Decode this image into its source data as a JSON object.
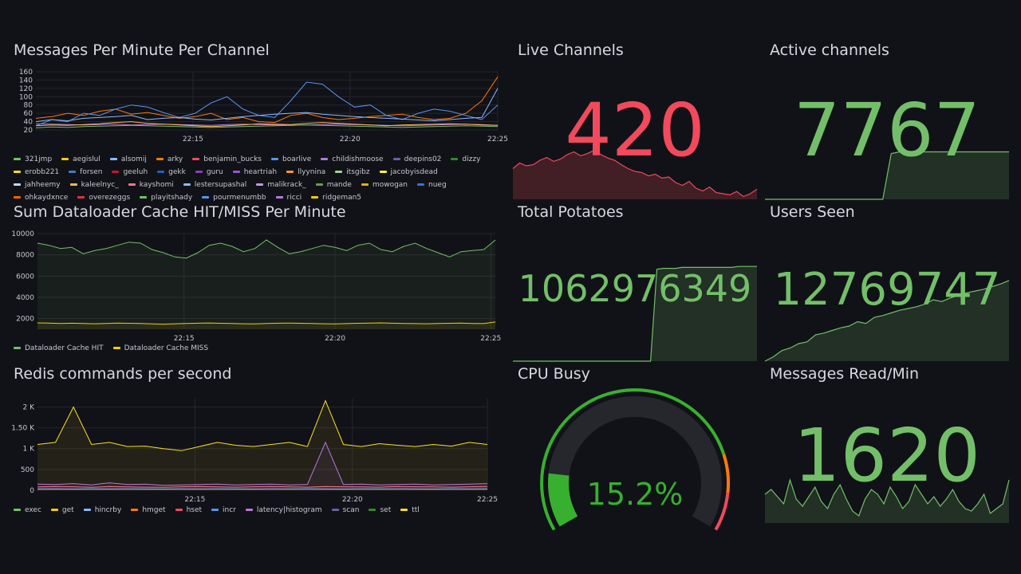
{
  "panels": {
    "messages": {
      "title": "Messages Per Minute Per Channel",
      "legend": [
        "321jmp",
        "aegislul",
        "alsomij",
        "arky",
        "benjamin_bucks",
        "boarlive",
        "childishmoose",
        "deepins02",
        "dizzy",
        "erobb221",
        "forsen",
        "geeluh",
        "gekk",
        "guru",
        "heartriah",
        "llyynina",
        "itsgibz",
        "jacobyisdead",
        "jahheemy",
        "kaleelnyc_",
        "kayshomi",
        "lestersupashal",
        "malikrack_",
        "mande",
        "mowogan",
        "nueg",
        "ohkaydxnce",
        "overezeggs",
        "playitshady",
        "pourmenumbb",
        "ricci",
        "ridgeman5"
      ]
    },
    "dataloader": {
      "title": "Sum Dataloader Cache HIT/MISS Per Minute",
      "legend": [
        "Dataloader Cache HIT",
        "Dataloader Cache MISS"
      ]
    },
    "redis": {
      "title": "Redis commands per second",
      "legend": [
        "exec",
        "get",
        "hincrby",
        "hmget",
        "hset",
        "incr",
        "latency|histogram",
        "scan",
        "set",
        "ttl"
      ]
    },
    "live_channels": {
      "title": "Live Channels",
      "value": "420",
      "color": "#f2495c"
    },
    "active_channels": {
      "title": "Active channels",
      "value": "7767",
      "color": "#73bf69"
    },
    "total_potatoes": {
      "title": "Total Potatoes",
      "value": "1062976349",
      "color": "#73bf69"
    },
    "users_seen": {
      "title": "Users Seen",
      "value": "12769747",
      "color": "#73bf69"
    },
    "cpu_busy": {
      "title": "CPU Busy",
      "value": "15.2%",
      "percent": 15.2,
      "color": "#37b02f"
    },
    "messages_read": {
      "title": "Messages Read/Min",
      "value": "1620",
      "color": "#73bf69"
    }
  },
  "legend_colors": [
    "#73bf69",
    "#f2cc0c",
    "#8ab8ff",
    "#ff780a",
    "#f2495c",
    "#5794f2",
    "#b877d9",
    "#705da0",
    "#37872d",
    "#fade2a",
    "#447ebc",
    "#c4162a",
    "#1f60c4",
    "#8f3bb8",
    "#a352cc",
    "#ff9830",
    "#96d98d",
    "#ffee52",
    "#c0d8ff",
    "#ffb357",
    "#ff7383",
    "#8ab8ff",
    "#ca95e5",
    "#56a64b",
    "#e0b400",
    "#3274d9",
    "#fa6400",
    "#e02f44",
    "#73bf69",
    "#5794f2",
    "#b877d9",
    "#f2cc0c"
  ],
  "chart_data": [
    {
      "type": "line",
      "title": "Messages Per Minute Per Channel",
      "x_ticks": [
        "22:15",
        "22:20",
        "22:25"
      ],
      "y_ticks": [
        20,
        40,
        60,
        80,
        100,
        120,
        140,
        160
      ],
      "ylim": [
        20,
        160
      ],
      "series": [
        {
          "name": "321jmp",
          "values": [
            35,
            34,
            33,
            32,
            33,
            34,
            32,
            33,
            34,
            33,
            32,
            31,
            33,
            34,
            33,
            32,
            31,
            32,
            33,
            34,
            33,
            32,
            31,
            30,
            31,
            32,
            33,
            34,
            33,
            31
          ]
        },
        {
          "name": "arky",
          "values": [
            48,
            52,
            60,
            55,
            65,
            70,
            58,
            62,
            55,
            48,
            52,
            60,
            45,
            50,
            40,
            38,
            55,
            60,
            50,
            45,
            48,
            52,
            55,
            58,
            50,
            45,
            48,
            60,
            90,
            148
          ]
        },
        {
          "name": "boarlive",
          "values": [
            30,
            45,
            40,
            60,
            55,
            70,
            80,
            75,
            62,
            50,
            60,
            85,
            100,
            70,
            55,
            50,
            90,
            135,
            130,
            100,
            75,
            80,
            55,
            45,
            60,
            70,
            65,
            55,
            45,
            80
          ]
        },
        {
          "name": "deepins02",
          "values": [
            40,
            45,
            42,
            48,
            50,
            52,
            55,
            45,
            48,
            50,
            46,
            44,
            48,
            52,
            55,
            58,
            60,
            62,
            58,
            55,
            52,
            50,
            48,
            46,
            44,
            42,
            45,
            48,
            50,
            120
          ]
        },
        {
          "name": "childishmoose",
          "values": [
            30,
            32,
            31,
            33,
            35,
            38,
            40,
            36,
            34,
            32,
            30,
            28,
            30,
            32,
            35,
            34,
            33,
            36,
            38,
            36,
            34,
            32,
            30,
            32,
            33,
            34,
            35,
            34,
            32,
            31
          ]
        },
        {
          "name": "erobb221",
          "values": [
            25,
            27,
            26,
            28,
            29,
            30,
            31,
            30,
            29,
            28,
            27,
            26,
            27,
            28,
            29,
            30,
            31,
            32,
            31,
            30,
            29,
            28,
            27,
            26,
            27,
            28,
            29,
            30,
            29,
            28
          ]
        }
      ]
    },
    {
      "type": "line",
      "title": "Sum Dataloader Cache HIT/MISS Per Minute",
      "x_ticks": [
        "22:15",
        "22:20",
        "22:25"
      ],
      "y_ticks": [
        2000,
        4000,
        6000,
        8000,
        10000
      ],
      "ylim": [
        1000,
        10000
      ],
      "series": [
        {
          "name": "Dataloader Cache HIT",
          "values": [
            9100,
            8900,
            8600,
            8700,
            8100,
            8400,
            8600,
            8900,
            9200,
            9100,
            8500,
            8200,
            7800,
            7700,
            8200,
            8900,
            9100,
            8800,
            8300,
            8600,
            9400,
            8700,
            8100,
            8300,
            8600,
            8900,
            8700,
            8400,
            8900,
            9100,
            8500,
            8300,
            8800,
            9100,
            8600,
            8200,
            7800,
            8300,
            8400,
            8500,
            9400
          ]
        },
        {
          "name": "Dataloader Cache MISS",
          "values": [
            1600,
            1580,
            1550,
            1570,
            1540,
            1520,
            1550,
            1580,
            1560,
            1540,
            1500,
            1480,
            1520,
            1550,
            1570,
            1590,
            1560,
            1540,
            1520,
            1500,
            1550,
            1570,
            1580,
            1560,
            1540,
            1520,
            1500,
            1530,
            1560,
            1580,
            1600,
            1570,
            1550,
            1530,
            1520,
            1540,
            1560,
            1580,
            1550,
            1530,
            1700
          ]
        }
      ]
    },
    {
      "type": "line",
      "title": "Redis commands per second",
      "x_ticks": [
        "22:15",
        "22:20",
        "22:25"
      ],
      "y_ticks": [
        "0",
        "500",
        "1 K",
        "1.50 K",
        "2 K"
      ],
      "ylim": [
        0,
        2200
      ],
      "series": [
        {
          "name": "exec",
          "values": [
            1100,
            1150,
            2000,
            1100,
            1150,
            1050,
            1060,
            1000,
            950,
            1050,
            1150,
            1080,
            1050,
            1100,
            1150,
            1050,
            2150,
            1100,
            1050,
            1120,
            1080,
            1050,
            1100,
            1060,
            1150,
            1100
          ]
        },
        {
          "name": "latency|histogram",
          "values": [
            150,
            140,
            160,
            130,
            180,
            140,
            150,
            120,
            130,
            140,
            150,
            130,
            140,
            150,
            130,
            140,
            1150,
            140,
            150,
            130,
            140,
            150,
            130,
            140,
            150,
            160
          ]
        },
        {
          "name": "hincrby",
          "values": [
            80,
            90,
            85,
            70,
            90,
            80,
            75,
            70,
            85,
            90,
            80,
            75,
            85,
            90,
            80,
            75,
            90,
            85,
            80,
            75,
            90,
            85,
            80,
            75,
            85,
            90
          ]
        },
        {
          "name": "get",
          "values": [
            30,
            35,
            28,
            32,
            30,
            34,
            30,
            28,
            32,
            30,
            34,
            30,
            28,
            32,
            30,
            34,
            30,
            28,
            32,
            30,
            34,
            30,
            28,
            32,
            30,
            34
          ]
        }
      ]
    }
  ]
}
